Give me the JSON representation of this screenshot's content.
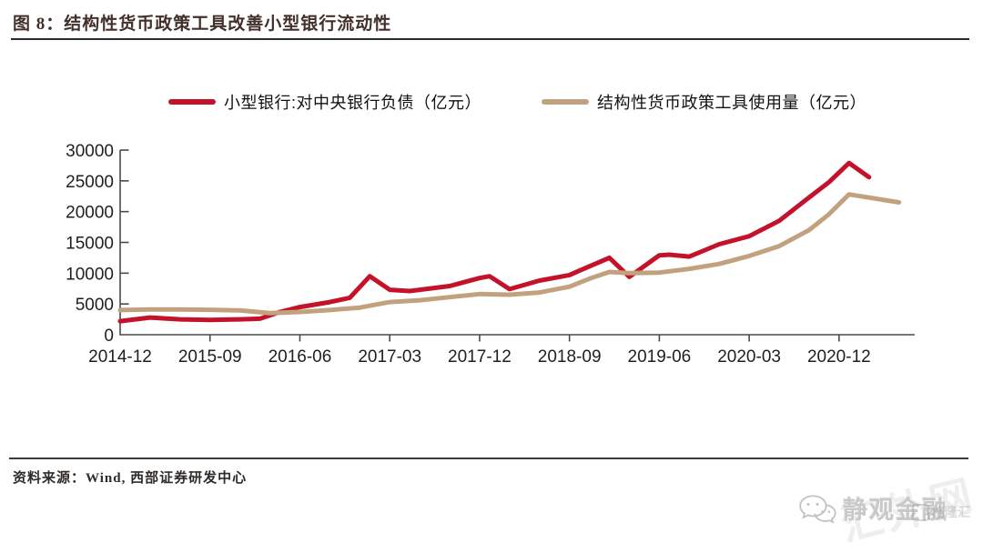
{
  "title": "图 8：结构性货币政策工具改善小型银行流动性",
  "legend": [
    {
      "label": "小型银行:对中央银行负债（亿元）",
      "color": "#c4122b"
    },
    {
      "label": "结构性货币政策工具使用量（亿元）",
      "color": "#c2a27e"
    }
  ],
  "chart_data": {
    "type": "line",
    "title": "图 8：结构性货币政策工具改善小型银行流动性",
    "xlabel": "",
    "ylabel": "亿元",
    "ylim": [
      0,
      30000
    ],
    "y_ticks": [
      0,
      5000,
      10000,
      15000,
      20000,
      25000,
      30000
    ],
    "x_unit": "months since 2014-12",
    "x_tick_months": [
      0,
      9,
      18,
      27,
      36,
      45,
      54,
      63,
      72
    ],
    "x_tick_labels": [
      "2014-12",
      "2015-09",
      "2016-06",
      "2017-03",
      "2017-12",
      "2018-09",
      "2019-06",
      "2020-03",
      "2020-12"
    ],
    "grid": false,
    "legend_position": "top-center",
    "series": [
      {
        "name": "小型银行:对中央银行负债（亿元）",
        "color": "#c4122b",
        "points": [
          [
            0,
            2200
          ],
          [
            3,
            2800
          ],
          [
            6,
            2500
          ],
          [
            9,
            2400
          ],
          [
            12,
            2500
          ],
          [
            14,
            2600
          ],
          [
            16,
            3700
          ],
          [
            18,
            4500
          ],
          [
            21,
            5300
          ],
          [
            23,
            6000
          ],
          [
            25,
            9500
          ],
          [
            27,
            7300
          ],
          [
            29,
            7100
          ],
          [
            33,
            7900
          ],
          [
            36,
            9200
          ],
          [
            37,
            9500
          ],
          [
            39,
            7400
          ],
          [
            42,
            8800
          ],
          [
            45,
            9700
          ],
          [
            46,
            10400
          ],
          [
            49,
            12500
          ],
          [
            51,
            9400
          ],
          [
            54,
            12900
          ],
          [
            55,
            13000
          ],
          [
            57,
            12700
          ],
          [
            60,
            14700
          ],
          [
            63,
            16000
          ],
          [
            66,
            18500
          ],
          [
            69,
            22300
          ],
          [
            71,
            24800
          ],
          [
            73,
            27900
          ],
          [
            75,
            25600
          ]
        ]
      },
      {
        "name": "结构性货币政策工具使用量（亿元）",
        "color": "#c2a27e",
        "points": [
          [
            0,
            4000
          ],
          [
            3,
            4100
          ],
          [
            6,
            4100
          ],
          [
            9,
            4050
          ],
          [
            12,
            3950
          ],
          [
            15,
            3500
          ],
          [
            18,
            3700
          ],
          [
            21,
            4000
          ],
          [
            24,
            4400
          ],
          [
            27,
            5300
          ],
          [
            30,
            5600
          ],
          [
            33,
            6100
          ],
          [
            36,
            6600
          ],
          [
            39,
            6500
          ],
          [
            42,
            6850
          ],
          [
            45,
            7800
          ],
          [
            47,
            9100
          ],
          [
            49,
            10200
          ],
          [
            51,
            10000
          ],
          [
            54,
            10100
          ],
          [
            57,
            10700
          ],
          [
            60,
            11500
          ],
          [
            63,
            12800
          ],
          [
            66,
            14400
          ],
          [
            69,
            17000
          ],
          [
            71,
            19600
          ],
          [
            73,
            22800
          ],
          [
            78,
            21500
          ]
        ]
      }
    ]
  },
  "footer": {
    "source": "资料来源：Wind, 西部证券研发中心",
    "watermark_brand": "静观金融",
    "watermark_site": "汇外网",
    "watermark_badge": "格隆汇"
  }
}
